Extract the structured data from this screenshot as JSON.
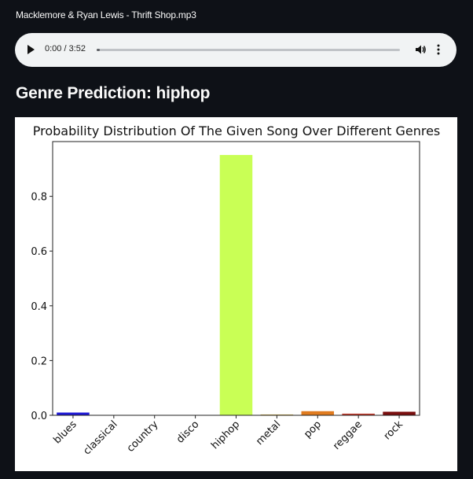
{
  "file": {
    "name": "Macklemore & Ryan Lewis - Thrift Shop.mp3"
  },
  "player": {
    "time": "0:00 / 3:52",
    "progress": 0.0,
    "play_icon": "play-icon",
    "volume_icon": "volume-icon",
    "more_icon": "more-vertical-icon"
  },
  "prediction": {
    "heading": "Genre Prediction: hiphop"
  },
  "chart_data": {
    "type": "bar",
    "title": "Probability Distribution Of The Given Song Over Different Genres",
    "xlabel": "",
    "ylabel": "",
    "categories": [
      "blues",
      "classical",
      "country",
      "disco",
      "hiphop",
      "metal",
      "pop",
      "reggae",
      "rock"
    ],
    "values": [
      0.01,
      0.0,
      0.0,
      0.0,
      0.951,
      0.003,
      0.015,
      0.006,
      0.013
    ],
    "colors": [
      "#1f18d6",
      "#2a2af0",
      "#cfd0d0",
      "#e6e6e6",
      "#c9ff55",
      "#d4b24a",
      "#e07b1f",
      "#c0392b",
      "#7a0f0f"
    ],
    "ylim": [
      0,
      1.0
    ],
    "yticks": [
      0.0,
      0.2,
      0.4,
      0.6,
      0.8
    ],
    "ytick_labels": [
      "0.0",
      "0.2",
      "0.4",
      "0.6",
      "0.8"
    ],
    "grid": false,
    "legend": "none"
  }
}
